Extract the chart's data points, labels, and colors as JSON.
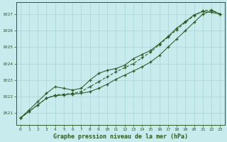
{
  "title": "Graphe pression niveau de la mer (hPa)",
  "hours": [
    0,
    1,
    2,
    3,
    4,
    5,
    6,
    7,
    8,
    9,
    10,
    11,
    12,
    13,
    14,
    15,
    16,
    17,
    18,
    19,
    20,
    21,
    22,
    23
  ],
  "ylim": [
    1020.3,
    1027.7
  ],
  "yticks": [
    1021,
    1022,
    1023,
    1024,
    1025,
    1026,
    1027
  ],
  "bg_color": "#c8eced",
  "grid_color": "#a8d4d5",
  "line_color": "#2d5a27",
  "series1": [
    1020.7,
    1021.1,
    1021.5,
    1021.9,
    1022.05,
    1022.1,
    1022.15,
    1022.2,
    1022.3,
    1022.5,
    1022.75,
    1023.05,
    1023.3,
    1023.55,
    1023.8,
    1024.1,
    1024.5,
    1025.0,
    1025.5,
    1026.0,
    1026.5,
    1027.0,
    1027.2,
    1027.0
  ],
  "series2": [
    1020.7,
    1021.1,
    1021.5,
    1021.9,
    1022.1,
    1022.15,
    1022.2,
    1022.3,
    1022.6,
    1022.9,
    1023.2,
    1023.5,
    1023.75,
    1024.0,
    1024.35,
    1024.7,
    1025.15,
    1025.6,
    1026.05,
    1026.5,
    1026.9,
    1027.2,
    1027.25,
    1027.0
  ],
  "series3": [
    1020.7,
    1021.2,
    1021.7,
    1022.2,
    1022.6,
    1022.5,
    1022.4,
    1022.5,
    1023.0,
    1023.4,
    1023.6,
    1023.7,
    1023.9,
    1024.3,
    1024.55,
    1024.8,
    1025.2,
    1025.65,
    1026.15,
    1026.55,
    1026.95,
    1027.15,
    1027.1,
    1027.0
  ]
}
